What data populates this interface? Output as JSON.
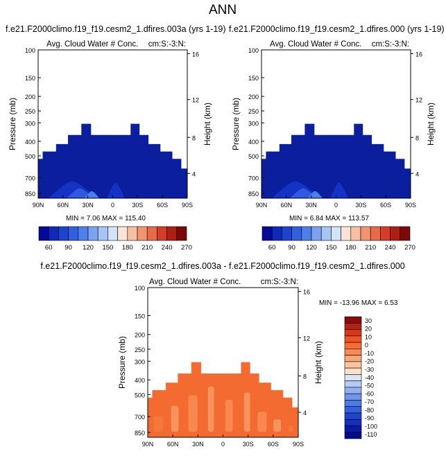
{
  "page_title": "ANN",
  "chart_data": [
    {
      "type": "heatmap",
      "case_title": "f.e21.F2000climo.f19_f19.cesm2_1.dfires.003a (yrs 1-19)",
      "title": "Avg. Cloud Water # Conc.",
      "corner_label": "cm:S:-3:N:",
      "ylabel": "Pressure (mb)",
      "ylabel_right": "Height (km)",
      "x_ticks": [
        "90N",
        "60N",
        "30N",
        "0",
        "30S",
        "60S",
        "90S"
      ],
      "y_ticks": [
        "100",
        "150",
        "200",
        "250",
        "300",
        "400",
        "500",
        "700",
        "850"
      ],
      "y_ticks_right": [
        "16",
        "12",
        "8",
        "4"
      ],
      "min_label": "MIN = ",
      "min": "7.06",
      "max_label": "MAX = ",
      "max": "115.40",
      "field_color": "#0a1e9e",
      "levels": [
        60,
        90,
        120,
        150,
        180,
        210,
        240,
        270
      ],
      "colorbar": [
        "#06089a",
        "#0f2ab8",
        "#1b45cf",
        "#3060df",
        "#4f7fe8",
        "#7aa2f0",
        "#a6c4f5",
        "#d3e3f8",
        "#fbe4d6",
        "#f8c0a3",
        "#f29470",
        "#e86a47",
        "#d53e25",
        "#b01d12",
        "#7d0808"
      ]
    },
    {
      "type": "heatmap",
      "case_title": "f.e21.F2000climo.f19_f19.cesm2_1.dfires.000 (yrs 1-19)",
      "title": "Avg. Cloud Water # Conc.",
      "corner_label": "cm:S:-3:N:",
      "ylabel": "Pressure (mb)",
      "ylabel_right": "Height (km)",
      "x_ticks": [
        "90N",
        "60N",
        "30N",
        "0",
        "30S",
        "60S",
        "90S"
      ],
      "y_ticks": [
        "100",
        "150",
        "200",
        "250",
        "300",
        "400",
        "500",
        "700",
        "850"
      ],
      "y_ticks_right": [
        "16",
        "12",
        "8",
        "4"
      ],
      "min_label": "MIN = ",
      "min": "6.84",
      "max_label": "MAX = ",
      "max": "113.57",
      "field_color": "#0a1e9e",
      "levels": [
        60,
        90,
        120,
        150,
        180,
        210,
        240,
        270
      ],
      "colorbar": [
        "#06089a",
        "#0f2ab8",
        "#1b45cf",
        "#3060df",
        "#4f7fe8",
        "#7aa2f0",
        "#a6c4f5",
        "#d3e3f8",
        "#fbe4d6",
        "#f8c0a3",
        "#f29470",
        "#e86a47",
        "#d53e25",
        "#b01d12",
        "#7d0808"
      ]
    },
    {
      "type": "heatmap",
      "case_title": "f.e21.F2000climo.f19_f19.cesm2_1.dfires.003a - f.e21.F2000climo.f19_f19.cesm2_1.dfires.000",
      "title": "Avg. Cloud Water # Conc.",
      "corner_label": "cm:S:-3:N:",
      "ylabel": "Pressure (mb)",
      "ylabel_right": "Height (km)",
      "x_ticks": [
        "90N",
        "60N",
        "30N",
        "0",
        "30S",
        "60S",
        "90S"
      ],
      "y_ticks": [
        "100",
        "150",
        "200",
        "250",
        "300",
        "400",
        "500",
        "700",
        "850"
      ],
      "y_ticks_right": [
        "16",
        "12",
        "8",
        "4"
      ],
      "min_label": "MIN = ",
      "min": "-13.96",
      "max_label": "MAX = ",
      "max": "6.53",
      "field_color": "#f46b32",
      "levels": [
        30,
        20,
        10,
        0,
        -10,
        -20,
        -30,
        -40,
        -50,
        -60,
        -70,
        -80,
        -90,
        -100,
        -110
      ],
      "colorbar": [
        "#8c0a0a",
        "#b8200f",
        "#d93717",
        "#ef5524",
        "#f56d32",
        "#f78a52",
        "#f8a675",
        "#fac39b",
        "#fce0c7",
        "#d9e6f8",
        "#b6ccf5",
        "#93b1f1",
        "#7096ec",
        "#4f7be6",
        "#3360dd",
        "#1f45d0",
        "#1230bd",
        "#071ca6",
        "#020c8a"
      ]
    }
  ]
}
